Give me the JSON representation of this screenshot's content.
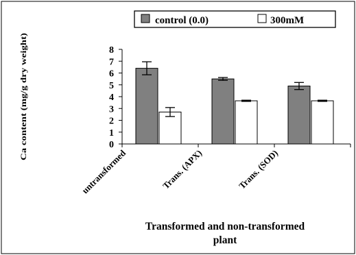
{
  "chart_data": {
    "type": "bar",
    "categories": [
      "untransformed",
      "Trans. (APX)",
      "Trans. (SOD)"
    ],
    "series": [
      {
        "name": "control (0.0)",
        "color": "#808080",
        "values": [
          6.4,
          5.5,
          4.9
        ],
        "errors": [
          0.55,
          0.12,
          0.3
        ]
      },
      {
        "name": "300mM",
        "color": "#ffffff",
        "values": [
          2.7,
          3.65,
          3.65
        ],
        "errors": [
          0.38,
          0.05,
          0.05
        ]
      }
    ],
    "ylabel": "Ca content (mg/g dry weight)",
    "xlabel": "Transformed and non-transformed plant",
    "xlabel_lines": [
      "Transformed and non-transformed",
      "plant"
    ],
    "ylim": [
      0,
      8
    ],
    "yticks": [
      0,
      1,
      2,
      3,
      4,
      5,
      6,
      7,
      8
    ],
    "legend_position": "top-right",
    "grid": false
  }
}
